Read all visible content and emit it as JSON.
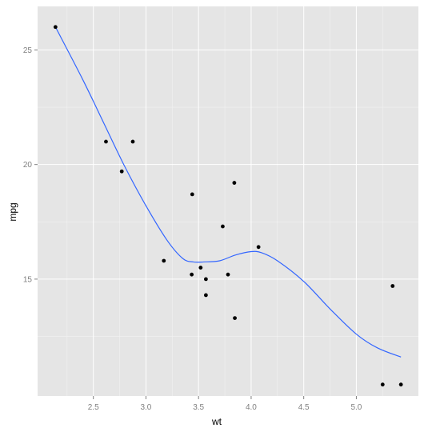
{
  "chart_data": {
    "type": "scatter",
    "title": "",
    "xlabel": "wt",
    "ylabel": "mpg",
    "xlim": [
      1.97,
      5.59
    ],
    "ylim": [
      9.9,
      26.9
    ],
    "grid": true,
    "legend": "none",
    "x_ticks": [
      2.5,
      3.0,
      3.5,
      4.0,
      4.5,
      5.0
    ],
    "x_tick_labels": [
      "2.5",
      "3.0",
      "3.5",
      "4.0",
      "4.5",
      "5.0"
    ],
    "y_ticks": [
      15,
      20,
      25
    ],
    "y_tick_labels": [
      "15",
      "20",
      "25"
    ],
    "points": [
      {
        "x": 2.14,
        "y": 26.0
      },
      {
        "x": 2.62,
        "y": 21.0
      },
      {
        "x": 2.875,
        "y": 21.0
      },
      {
        "x": 2.77,
        "y": 19.7
      },
      {
        "x": 3.17,
        "y": 15.8
      },
      {
        "x": 3.435,
        "y": 15.2
      },
      {
        "x": 3.44,
        "y": 18.7
      },
      {
        "x": 3.52,
        "y": 15.5
      },
      {
        "x": 3.57,
        "y": 15.0
      },
      {
        "x": 3.57,
        "y": 14.3
      },
      {
        "x": 3.73,
        "y": 17.3
      },
      {
        "x": 3.78,
        "y": 15.2
      },
      {
        "x": 3.84,
        "y": 19.2
      },
      {
        "x": 3.845,
        "y": 13.3
      },
      {
        "x": 4.07,
        "y": 16.4
      },
      {
        "x": 5.25,
        "y": 10.4
      },
      {
        "x": 5.345,
        "y": 14.7
      },
      {
        "x": 5.424,
        "y": 10.4
      }
    ],
    "smooth_line": {
      "color": "#3366ff",
      "x": [
        2.14,
        2.4,
        2.6,
        2.8,
        3.0,
        3.2,
        3.35,
        3.45,
        3.55,
        3.7,
        3.85,
        4.0,
        4.1,
        4.25,
        4.5,
        4.75,
        5.0,
        5.2,
        5.424
      ],
      "y": [
        26.0,
        23.7,
        21.8,
        19.9,
        18.2,
        16.7,
        15.9,
        15.75,
        15.75,
        15.8,
        16.05,
        16.2,
        16.15,
        15.8,
        14.9,
        13.7,
        12.6,
        12.0,
        11.6
      ]
    },
    "point_color": "#000000",
    "panel_color": "#e5e5e5",
    "grid_color": "#ffffff"
  }
}
